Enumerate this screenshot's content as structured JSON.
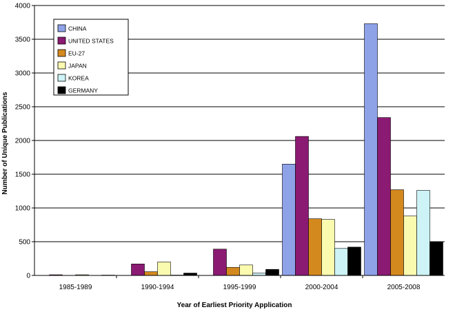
{
  "chart_data": {
    "type": "bar",
    "title": "",
    "xlabel": "Year of Earliest Priority Application",
    "ylabel": "Number of Unique Publications",
    "ylim": [
      0,
      4000
    ],
    "yticks": [
      0,
      500,
      1000,
      1500,
      2000,
      2500,
      3000,
      3500,
      4000
    ],
    "grid": true,
    "legend_position": "top-left",
    "categories": [
      "1985-1989",
      "1990-1994",
      "1995-1999",
      "2000-2004",
      "2005-2008"
    ],
    "series": [
      {
        "name": "CHINA",
        "color": "#8ea2e8",
        "values": [
          0,
          0,
          0,
          1650,
          3730
        ]
      },
      {
        "name": "UNITED STATES",
        "color": "#8b1a73",
        "values": [
          10,
          170,
          390,
          2060,
          2340
        ]
      },
      {
        "name": "EU-27",
        "color": "#d4891e",
        "values": [
          0,
          55,
          120,
          840,
          1270
        ]
      },
      {
        "name": "JAPAN",
        "color": "#fbfbb0",
        "values": [
          10,
          200,
          155,
          830,
          880
        ]
      },
      {
        "name": "KOREA",
        "color": "#cdf3f6",
        "values": [
          0,
          5,
          35,
          400,
          1260
        ]
      },
      {
        "name": "GERMANY",
        "color": "#000000",
        "values": [
          5,
          35,
          90,
          420,
          500
        ]
      }
    ]
  }
}
